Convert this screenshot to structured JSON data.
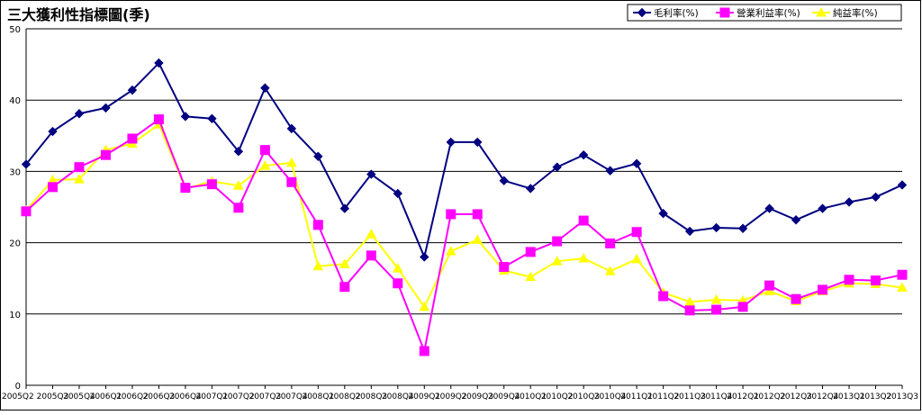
{
  "chart_data": {
    "type": "line",
    "title": "三大獲利性指標圖(季)",
    "xlabel": "",
    "ylabel": "",
    "ylim": [
      0,
      50
    ],
    "yticks": [
      0,
      10,
      20,
      30,
      40,
      50
    ],
    "grid": true,
    "legend_position": "top-right",
    "categories": [
      "2005Q2",
      "2005Q3",
      "2005Q4",
      "2006Q1",
      "2006Q2",
      "2006Q3",
      "2006Q4",
      "2007Q1",
      "2007Q2",
      "2007Q3",
      "2007Q4",
      "2008Q1",
      "2008Q2",
      "2008Q3",
      "2008Q4",
      "2009Q1",
      "2009Q2",
      "2009Q3",
      "2009Q4",
      "2010Q1",
      "2010Q2",
      "2010Q3",
      "2010Q4",
      "2011Q1",
      "2011Q2",
      "2011Q3",
      "2011Q4",
      "2012Q1",
      "2012Q2",
      "2012Q3",
      "2012Q4",
      "2013Q1",
      "2013Q2",
      "2013Q3"
    ],
    "series": [
      {
        "name": "毛利率(%)",
        "color": "#000080",
        "marker": "diamond",
        "values": [
          31.0,
          35.6,
          38.1,
          38.9,
          41.4,
          45.2,
          37.7,
          37.4,
          32.8,
          41.7,
          36.0,
          32.1,
          24.8,
          29.6,
          26.9,
          18.0,
          34.1,
          34.1,
          28.7,
          27.6,
          30.6,
          32.3,
          30.1,
          31.1,
          24.1,
          21.6,
          22.1,
          22.0,
          24.8,
          23.2,
          24.8,
          25.7,
          26.4,
          28.1
        ]
      },
      {
        "name": "營業利益率(%)",
        "color": "#ff00ff",
        "marker": "square",
        "values": [
          24.4,
          27.8,
          30.6,
          32.3,
          34.6,
          37.3,
          27.7,
          28.2,
          24.9,
          33.0,
          28.5,
          22.5,
          13.8,
          18.2,
          14.3,
          4.8,
          24.0,
          24.0,
          16.6,
          18.7,
          20.2,
          23.1,
          19.9,
          21.5,
          12.5,
          10.5,
          10.6,
          11.0,
          14.0,
          12.1,
          13.4,
          14.8,
          14.7,
          15.5
        ]
      },
      {
        "name": "純益率(%)",
        "color": "#ffff00",
        "marker": "triangle",
        "values": [
          24.5,
          28.8,
          28.9,
          33.0,
          33.9,
          36.6,
          27.6,
          28.6,
          28.0,
          30.8,
          31.2,
          16.7,
          17.0,
          21.2,
          16.4,
          11.0,
          18.8,
          20.4,
          16.1,
          15.2,
          17.4,
          17.8,
          16.0,
          17.7,
          13.0,
          11.7,
          12.0,
          11.9,
          13.2,
          11.8,
          13.2,
          14.3,
          14.2,
          13.7
        ]
      }
    ]
  }
}
